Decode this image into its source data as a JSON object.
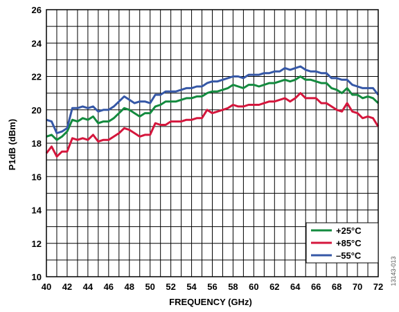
{
  "chart_data": {
    "type": "line",
    "title": "",
    "xlabel": "FREQUENCY (GHz)",
    "ylabel": "P1dB (dBm)",
    "xlim": [
      40,
      72
    ],
    "ylim": [
      10,
      26
    ],
    "x_ticks": [
      "40",
      "42",
      "44",
      "46",
      "48",
      "50",
      "52",
      "54",
      "56",
      "58",
      "60",
      "62",
      "64",
      "66",
      "68",
      "70",
      "72"
    ],
    "y_ticks": [
      "10",
      "12",
      "14",
      "16",
      "18",
      "20",
      "22",
      "24",
      "26"
    ],
    "grid": true,
    "legend_position": "bottom-right",
    "figure_id": "13143-013",
    "series": [
      {
        "name": "+25°C",
        "color": "#138a3e",
        "x": [
          40,
          40.5,
          41,
          41.5,
          42,
          42.5,
          43,
          43.5,
          44,
          44.5,
          45,
          45.5,
          46,
          46.5,
          47,
          47.5,
          48,
          48.5,
          49,
          49.5,
          50,
          50.5,
          51,
          51.5,
          52,
          52.5,
          53,
          53.5,
          54,
          54.5,
          55,
          55.5,
          56,
          56.5,
          57,
          57.5,
          58,
          58.5,
          59,
          59.5,
          60,
          60.5,
          61,
          61.5,
          62,
          62.5,
          63,
          63.5,
          64,
          64.5,
          65,
          65.5,
          66,
          66.5,
          67,
          67.5,
          68,
          68.5,
          69,
          69.5,
          70,
          70.5,
          71,
          71.5,
          72
        ],
        "values": [
          18.4,
          18.5,
          18.2,
          18.4,
          18.7,
          19.4,
          19.3,
          19.5,
          19.4,
          19.6,
          19.2,
          19.3,
          19.3,
          19.5,
          19.8,
          20.1,
          20.0,
          19.8,
          19.6,
          19.8,
          19.8,
          20.2,
          20.3,
          20.5,
          20.5,
          20.5,
          20.6,
          20.7,
          20.7,
          20.8,
          20.8,
          21.0,
          21.1,
          21.1,
          21.2,
          21.3,
          21.5,
          21.4,
          21.3,
          21.5,
          21.5,
          21.4,
          21.5,
          21.6,
          21.6,
          21.7,
          21.8,
          21.7,
          21.8,
          22.0,
          21.8,
          21.8,
          21.7,
          21.6,
          21.6,
          21.3,
          21.2,
          21.0,
          21.3,
          20.9,
          20.9,
          20.7,
          20.8,
          20.7,
          20.4
        ]
      },
      {
        "name": "+85°C",
        "color": "#d4163c",
        "x": [
          40,
          40.5,
          41,
          41.5,
          42,
          42.5,
          43,
          43.5,
          44,
          44.5,
          45,
          45.5,
          46,
          46.5,
          47,
          47.5,
          48,
          48.5,
          49,
          49.5,
          50,
          50.5,
          51,
          51.5,
          52,
          52.5,
          53,
          53.5,
          54,
          54.5,
          55,
          55.5,
          56,
          56.5,
          57,
          57.5,
          58,
          58.5,
          59,
          59.5,
          60,
          60.5,
          61,
          61.5,
          62,
          62.5,
          63,
          63.5,
          64,
          64.5,
          65,
          65.5,
          66,
          66.5,
          67,
          67.5,
          68,
          68.5,
          69,
          69.5,
          70,
          70.5,
          71,
          71.5,
          72
        ],
        "values": [
          17.4,
          17.8,
          17.2,
          17.5,
          17.5,
          18.3,
          18.2,
          18.3,
          18.2,
          18.5,
          18.1,
          18.2,
          18.2,
          18.4,
          18.6,
          18.9,
          18.8,
          18.6,
          18.4,
          18.5,
          18.5,
          19.2,
          19.1,
          19.1,
          19.3,
          19.3,
          19.3,
          19.4,
          19.4,
          19.5,
          19.5,
          20.0,
          19.8,
          19.9,
          20.0,
          20.1,
          20.3,
          20.2,
          20.2,
          20.3,
          20.3,
          20.3,
          20.4,
          20.5,
          20.5,
          20.6,
          20.7,
          20.5,
          20.7,
          21.0,
          20.7,
          20.7,
          20.7,
          20.4,
          20.4,
          20.2,
          20.0,
          19.9,
          20.4,
          19.9,
          19.8,
          19.5,
          19.6,
          19.5,
          19.0
        ]
      },
      {
        "name": "–55°C",
        "color": "#3557a6",
        "x": [
          40,
          40.5,
          41,
          41.5,
          42,
          42.5,
          43,
          43.5,
          44,
          44.5,
          45,
          45.5,
          46,
          46.5,
          47,
          47.5,
          48,
          48.5,
          49,
          49.5,
          50,
          50.5,
          51,
          51.5,
          52,
          52.5,
          53,
          53.5,
          54,
          54.5,
          55,
          55.5,
          56,
          56.5,
          57,
          57.5,
          58,
          58.5,
          59,
          59.5,
          60,
          60.5,
          61,
          61.5,
          62,
          62.5,
          63,
          63.5,
          64,
          64.5,
          65,
          65.5,
          66,
          66.5,
          67,
          67.5,
          68,
          68.5,
          69,
          69.5,
          70,
          70.5,
          71,
          71.5,
          72
        ],
        "values": [
          19.4,
          19.3,
          18.6,
          18.7,
          18.9,
          20.1,
          20.1,
          20.2,
          20.1,
          20.2,
          19.9,
          20.0,
          20.0,
          20.2,
          20.5,
          20.8,
          20.6,
          20.4,
          20.5,
          20.5,
          20.4,
          20.9,
          20.9,
          21.1,
          21.1,
          21.1,
          21.2,
          21.3,
          21.3,
          21.4,
          21.4,
          21.6,
          21.7,
          21.7,
          21.8,
          21.9,
          22.0,
          22.0,
          21.9,
          22.1,
          22.1,
          22.1,
          22.2,
          22.2,
          22.3,
          22.3,
          22.5,
          22.4,
          22.5,
          22.6,
          22.4,
          22.3,
          22.3,
          22.2,
          22.2,
          21.9,
          21.9,
          21.8,
          21.8,
          21.5,
          21.4,
          21.3,
          21.3,
          21.3,
          20.9
        ]
      }
    ]
  }
}
